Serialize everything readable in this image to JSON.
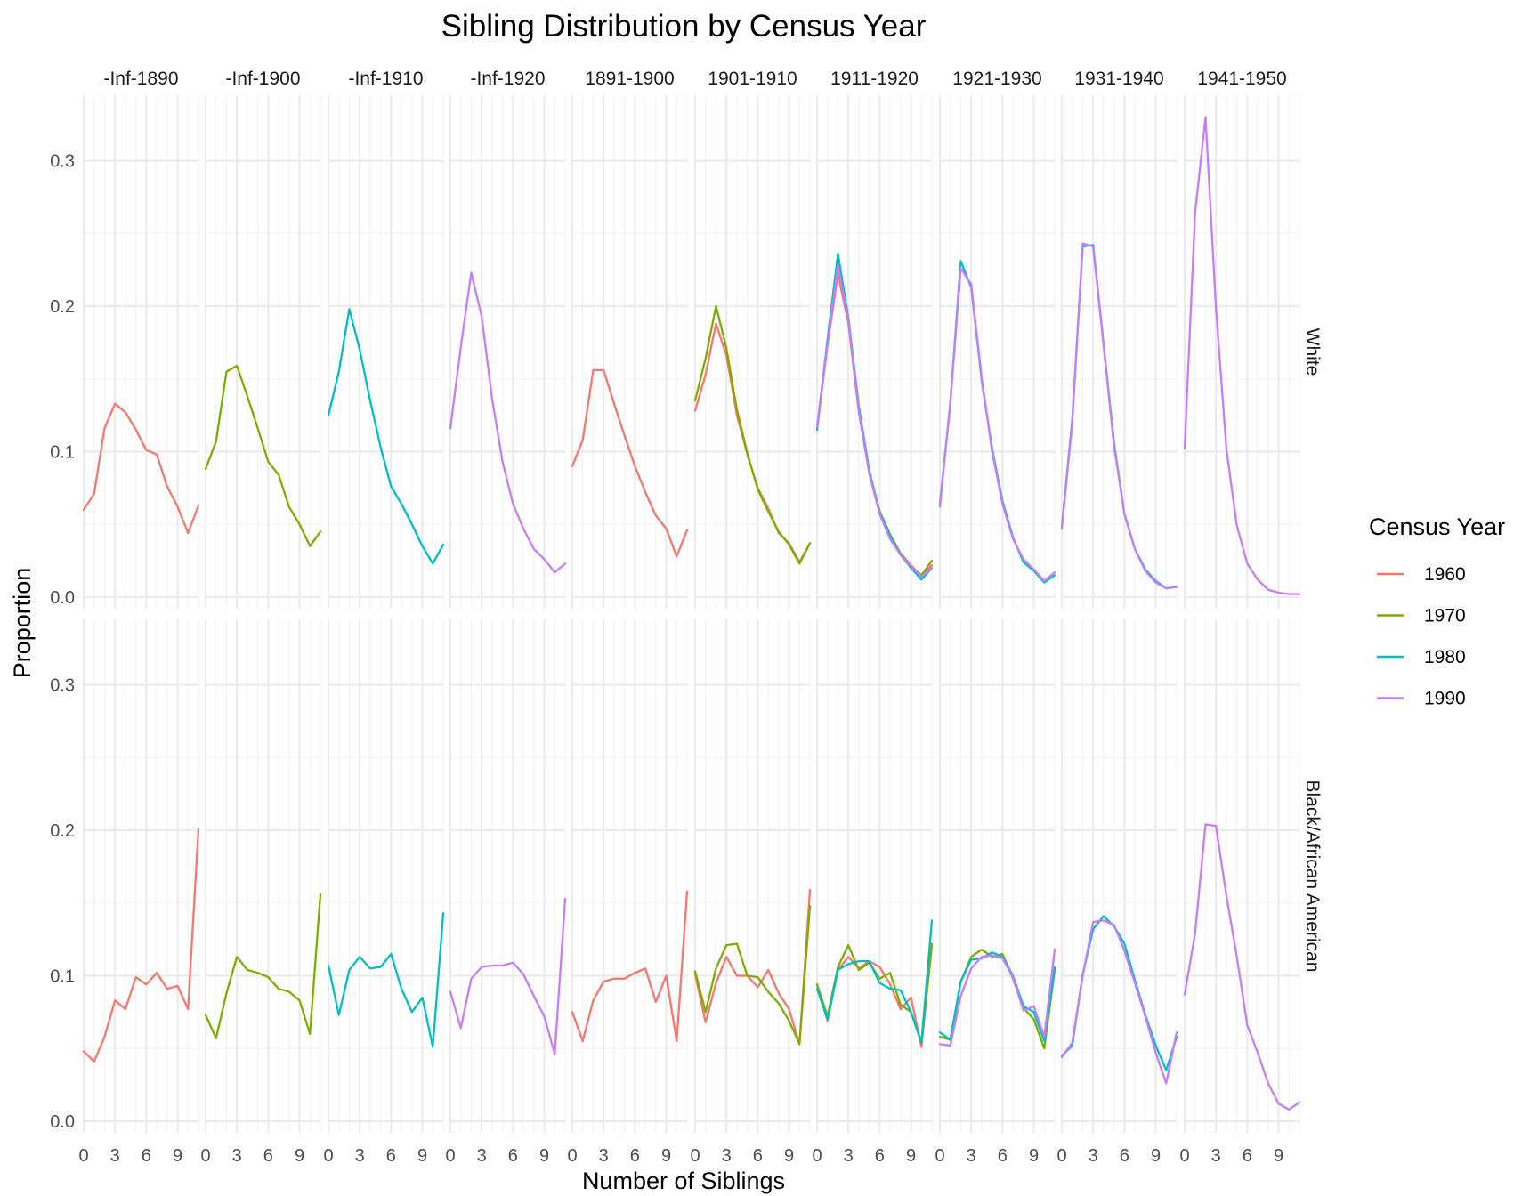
{
  "chart_data": {
    "type": "line",
    "title": "Sibling Distribution by Census Year",
    "xlabel": "Number of Siblings",
    "ylabel": "Proportion",
    "legend_title": "Census Year",
    "legend_position": "right",
    "grid": true,
    "xlim": [
      0,
      11
    ],
    "ylim": [
      -0.008,
      0.345
    ],
    "x_ticks": [
      0,
      3,
      6,
      9
    ],
    "y_ticks": [
      0.0,
      0.1,
      0.2,
      0.3
    ],
    "y_tick_labels": [
      "0.0",
      "0.1",
      "0.2",
      "0.3"
    ],
    "x": [
      0,
      1,
      2,
      3,
      4,
      5,
      6,
      7,
      8,
      9,
      10,
      11
    ],
    "series_colors": {
      "1960": "#F8766D",
      "1970": "#7CAE00",
      "1980": "#00BFC4",
      "1990": "#C77CFF"
    },
    "legend": [
      {
        "name": "1960",
        "color": "#F8766D"
      },
      {
        "name": "1970",
        "color": "#7CAE00"
      },
      {
        "name": "1980",
        "color": "#00BFC4"
      },
      {
        "name": "1990",
        "color": "#C77CFF"
      }
    ],
    "facet_columns": [
      "-Inf-1890",
      "-Inf-1900",
      "-Inf-1910",
      "-Inf-1920",
      "1891-1900",
      "1901-1910",
      "1911-1920",
      "1921-1930",
      "1931-1940",
      "1941-1950"
    ],
    "facet_rows": [
      "White",
      "Black/African American"
    ],
    "panels": [
      {
        "row": 0,
        "col": 0,
        "series": [
          {
            "name": "1960",
            "values": [
              0.06,
              0.071,
              0.116,
              0.133,
              0.127,
              0.115,
              0.101,
              0.098,
              0.076,
              0.062,
              0.044,
              0.063
            ]
          }
        ]
      },
      {
        "row": 0,
        "col": 1,
        "series": [
          {
            "name": "1970",
            "values": [
              0.088,
              0.107,
              0.155,
              0.159,
              0.138,
              0.116,
              0.093,
              0.084,
              0.062,
              0.05,
              0.035,
              0.045
            ]
          }
        ]
      },
      {
        "row": 0,
        "col": 2,
        "series": [
          {
            "name": "1980",
            "values": [
              0.125,
              0.155,
              0.198,
              0.17,
              0.135,
              0.103,
              0.076,
              0.064,
              0.05,
              0.035,
              0.023,
              0.036
            ]
          }
        ]
      },
      {
        "row": 0,
        "col": 3,
        "series": [
          {
            "name": "1990",
            "values": [
              0.116,
              0.172,
              0.223,
              0.193,
              0.136,
              0.093,
              0.064,
              0.047,
              0.033,
              0.026,
              0.017,
              0.023
            ]
          }
        ]
      },
      {
        "row": 0,
        "col": 4,
        "series": [
          {
            "name": "1960",
            "values": [
              0.09,
              0.108,
              0.156,
              0.156,
              0.133,
              0.111,
              0.09,
              0.072,
              0.056,
              0.047,
              0.028,
              0.046
            ]
          }
        ]
      },
      {
        "row": 0,
        "col": 5,
        "series": [
          {
            "name": "1960",
            "values": [
              0.128,
              0.153,
              0.188,
              0.166,
              0.125,
              0.098,
              0.075,
              0.061,
              0.044,
              0.037,
              0.024,
              0.037
            ]
          },
          {
            "name": "1970",
            "values": [
              0.135,
              0.164,
              0.2,
              0.171,
              0.129,
              0.099,
              0.074,
              0.059,
              0.045,
              0.036,
              0.023,
              0.037
            ]
          }
        ]
      },
      {
        "row": 0,
        "col": 6,
        "series": [
          {
            "name": "1960",
            "values": [
              0.116,
              0.173,
              0.222,
              0.188,
              0.127,
              0.086,
              0.058,
              0.04,
              0.03,
              0.022,
              0.014,
              0.022
            ]
          },
          {
            "name": "1970",
            "values": [
              0.116,
              0.176,
              0.228,
              0.19,
              0.129,
              0.085,
              0.059,
              0.043,
              0.03,
              0.021,
              0.015,
              0.025
            ]
          },
          {
            "name": "1980",
            "values": [
              0.115,
              0.177,
              0.236,
              0.192,
              0.131,
              0.087,
              0.058,
              0.042,
              0.029,
              0.02,
              0.012,
              0.02
            ]
          },
          {
            "name": "1990",
            "values": [
              0.117,
              0.174,
              0.228,
              0.19,
              0.128,
              0.085,
              0.057,
              0.04,
              0.029,
              0.021,
              0.014,
              0.02
            ]
          }
        ]
      },
      {
        "row": 0,
        "col": 7,
        "series": [
          {
            "name": "1980",
            "values": [
              0.064,
              0.133,
              0.231,
              0.213,
              0.149,
              0.102,
              0.066,
              0.041,
              0.024,
              0.018,
              0.01,
              0.015
            ]
          },
          {
            "name": "1990",
            "values": [
              0.062,
              0.134,
              0.226,
              0.215,
              0.151,
              0.1,
              0.064,
              0.04,
              0.026,
              0.019,
              0.011,
              0.017
            ]
          }
        ]
      },
      {
        "row": 0,
        "col": 8,
        "series": [
          {
            "name": "1980",
            "values": [
              0.048,
              0.122,
              0.241,
              0.242,
              0.174,
              0.106,
              0.057,
              0.033,
              0.019,
              0.011,
              0.006,
              0.007
            ]
          },
          {
            "name": "1990",
            "values": [
              0.047,
              0.12,
              0.243,
              0.241,
              0.173,
              0.104,
              0.057,
              0.033,
              0.018,
              0.01,
              0.006,
              0.007
            ]
          }
        ]
      },
      {
        "row": 0,
        "col": 9,
        "series": [
          {
            "name": "1990",
            "values": [
              0.102,
              0.264,
              0.33,
              0.199,
              0.102,
              0.049,
              0.023,
              0.012,
              0.005,
              0.003,
              0.002,
              0.002
            ]
          }
        ]
      },
      {
        "row": 1,
        "col": 0,
        "series": [
          {
            "name": "1960",
            "values": [
              0.048,
              0.041,
              0.058,
              0.083,
              0.077,
              0.099,
              0.094,
              0.102,
              0.091,
              0.093,
              0.077,
              0.201
            ]
          }
        ]
      },
      {
        "row": 1,
        "col": 1,
        "series": [
          {
            "name": "1970",
            "values": [
              0.073,
              0.057,
              0.088,
              0.113,
              0.104,
              0.102,
              0.099,
              0.091,
              0.089,
              0.083,
              0.06,
              0.156
            ]
          }
        ]
      },
      {
        "row": 1,
        "col": 2,
        "series": [
          {
            "name": "1980",
            "values": [
              0.107,
              0.073,
              0.104,
              0.113,
              0.105,
              0.106,
              0.115,
              0.091,
              0.075,
              0.085,
              0.051,
              0.143
            ]
          }
        ]
      },
      {
        "row": 1,
        "col": 3,
        "series": [
          {
            "name": "1990",
            "values": [
              0.089,
              0.064,
              0.098,
              0.106,
              0.107,
              0.107,
              0.109,
              0.101,
              0.086,
              0.072,
              0.046,
              0.153
            ]
          }
        ]
      },
      {
        "row": 1,
        "col": 4,
        "series": [
          {
            "name": "1960",
            "values": [
              0.075,
              0.055,
              0.083,
              0.096,
              0.098,
              0.098,
              0.102,
              0.105,
              0.082,
              0.1,
              0.055,
              0.158
            ]
          }
        ]
      },
      {
        "row": 1,
        "col": 5,
        "series": [
          {
            "name": "1960",
            "values": [
              0.101,
              0.068,
              0.095,
              0.113,
              0.1,
              0.1,
              0.092,
              0.104,
              0.088,
              0.077,
              0.053,
              0.159
            ]
          },
          {
            "name": "1970",
            "values": [
              0.103,
              0.075,
              0.105,
              0.121,
              0.122,
              0.1,
              0.099,
              0.089,
              0.081,
              0.069,
              0.053,
              0.148
            ]
          }
        ]
      },
      {
        "row": 1,
        "col": 6,
        "series": [
          {
            "name": "1960",
            "values": [
              0.094,
              0.069,
              0.104,
              0.113,
              0.105,
              0.11,
              0.106,
              0.094,
              0.077,
              0.085,
              0.051,
              0.122
            ]
          },
          {
            "name": "1970",
            "values": [
              0.094,
              0.072,
              0.106,
              0.121,
              0.104,
              0.109,
              0.098,
              0.102,
              0.08,
              0.075,
              0.054,
              0.121
            ]
          },
          {
            "name": "1980",
            "values": [
              0.091,
              0.07,
              0.104,
              0.108,
              0.11,
              0.11,
              0.095,
              0.091,
              0.09,
              0.075,
              0.054,
              0.138
            ]
          }
        ]
      },
      {
        "row": 1,
        "col": 7,
        "series": [
          {
            "name": "1970",
            "values": [
              0.058,
              0.056,
              0.096,
              0.113,
              0.118,
              0.113,
              0.115,
              0.098,
              0.078,
              0.07,
              0.05,
              0.104
            ]
          },
          {
            "name": "1980",
            "values": [
              0.061,
              0.056,
              0.096,
              0.111,
              0.112,
              0.116,
              0.113,
              0.1,
              0.079,
              0.075,
              0.055,
              0.106
            ]
          },
          {
            "name": "1990",
            "values": [
              0.053,
              0.052,
              0.086,
              0.105,
              0.113,
              0.114,
              0.112,
              0.099,
              0.076,
              0.079,
              0.058,
              0.118
            ]
          }
        ]
      },
      {
        "row": 1,
        "col": 8,
        "series": [
          {
            "name": "1980",
            "values": [
              0.045,
              0.052,
              0.101,
              0.132,
              0.141,
              0.134,
              0.122,
              0.097,
              0.073,
              0.052,
              0.035,
              0.058
            ]
          },
          {
            "name": "1990",
            "values": [
              0.044,
              0.054,
              0.1,
              0.137,
              0.138,
              0.135,
              0.117,
              0.095,
              0.072,
              0.047,
              0.026,
              0.061
            ]
          }
        ]
      },
      {
        "row": 1,
        "col": 9,
        "series": [
          {
            "name": "1990",
            "values": [
              0.087,
              0.129,
              0.204,
              0.203,
              0.155,
              0.113,
              0.066,
              0.047,
              0.026,
              0.012,
              0.008,
              0.013
            ]
          }
        ]
      }
    ]
  }
}
